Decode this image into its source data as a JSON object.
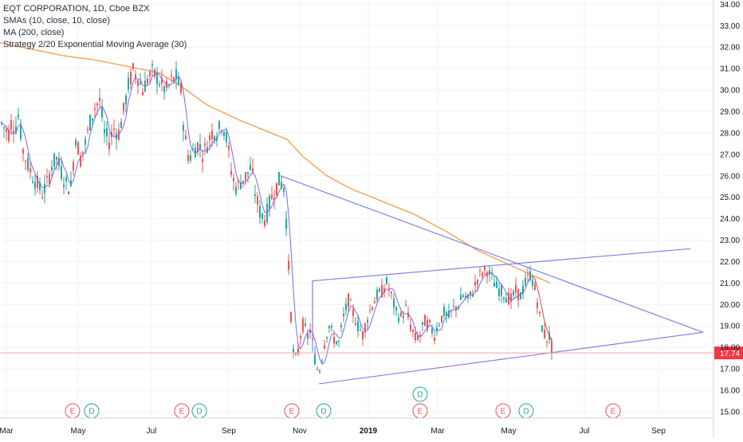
{
  "legend": {
    "symbol": "EQT CORPORATION, 1D, Cboe BZX",
    "sma": "SMAs (10, close, 10, close)",
    "ma": "MA (200, close)",
    "strategy": "Strategy 2/20 Exponential Moving Average (30)"
  },
  "colors": {
    "up": "#26a69a",
    "down": "#ef5350",
    "sma": "#7b68ee",
    "sma2": "#e0405a",
    "ma200": "#f5a05a",
    "trend": "#8080e8",
    "last_price": "#f23645",
    "event_e": "#ef5350",
    "event_d": "#26a69a",
    "grid": "#f0f3fa",
    "axis_text": "#131722"
  },
  "chart_data": {
    "type": "candlestick",
    "title": "EQT CORPORATION, 1D, Cboe BZX",
    "x_tick_labels": [
      "Mar",
      "May",
      "Jul",
      "Sep",
      "Nov",
      "2019",
      "Mar",
      "May",
      "Jul",
      "Sep"
    ],
    "y_tick_labels": [
      "15.00",
      "16.00",
      "17.00",
      "18.00",
      "19.00",
      "20.00",
      "21.00",
      "22.00",
      "23.00",
      "24.00",
      "25.00",
      "26.00",
      "27.00",
      "28.00",
      "29.00",
      "30.00",
      "31.00",
      "32.00",
      "33.00",
      "34.00"
    ],
    "y_ticks": [
      15,
      16,
      17,
      18,
      19,
      20,
      21,
      22,
      23,
      24,
      25,
      26,
      27,
      28,
      29,
      30,
      31,
      32,
      33,
      34
    ],
    "ylim": [
      14.7,
      34.2
    ],
    "last_price": 17.74,
    "last_price_label": "17.74",
    "price_path": [
      {
        "x": 0,
        "y": 28.5
      },
      {
        "x": 5,
        "y": 28.2
      },
      {
        "x": 10,
        "y": 28.0
      },
      {
        "x": 14,
        "y": 28.6
      },
      {
        "x": 18,
        "y": 28.2
      },
      {
        "x": 22,
        "y": 28.8
      },
      {
        "x": 28,
        "y": 27.2
      },
      {
        "x": 34,
        "y": 26.5
      },
      {
        "x": 40,
        "y": 26.0
      },
      {
        "x": 46,
        "y": 25.6
      },
      {
        "x": 52,
        "y": 25.2
      },
      {
        "x": 58,
        "y": 25.6
      },
      {
        "x": 64,
        "y": 26.5
      },
      {
        "x": 70,
        "y": 26.8
      },
      {
        "x": 76,
        "y": 26.2
      },
      {
        "x": 82,
        "y": 25.6
      },
      {
        "x": 88,
        "y": 25.5
      },
      {
        "x": 94,
        "y": 27.8
      },
      {
        "x": 100,
        "y": 26.8
      },
      {
        "x": 106,
        "y": 27.5
      },
      {
        "x": 112,
        "y": 28.5
      },
      {
        "x": 118,
        "y": 29.2
      },
      {
        "x": 124,
        "y": 29.5
      },
      {
        "x": 130,
        "y": 28.0
      },
      {
        "x": 136,
        "y": 27.6
      },
      {
        "x": 142,
        "y": 28.2
      },
      {
        "x": 148,
        "y": 28.0
      },
      {
        "x": 154,
        "y": 29.0
      },
      {
        "x": 160,
        "y": 30.2
      },
      {
        "x": 166,
        "y": 30.9
      },
      {
        "x": 172,
        "y": 30.6
      },
      {
        "x": 178,
        "y": 30.0
      },
      {
        "x": 184,
        "y": 30.5
      },
      {
        "x": 190,
        "y": 30.8
      },
      {
        "x": 196,
        "y": 30.6
      },
      {
        "x": 202,
        "y": 30.2
      },
      {
        "x": 208,
        "y": 30.0
      },
      {
        "x": 214,
        "y": 30.4
      },
      {
        "x": 220,
        "y": 30.6
      },
      {
        "x": 226,
        "y": 30.0
      },
      {
        "x": 230,
        "y": 28.0
      },
      {
        "x": 236,
        "y": 26.8
      },
      {
        "x": 242,
        "y": 27.2
      },
      {
        "x": 248,
        "y": 27.5
      },
      {
        "x": 254,
        "y": 27.0
      },
      {
        "x": 260,
        "y": 27.6
      },
      {
        "x": 266,
        "y": 28.1
      },
      {
        "x": 272,
        "y": 28.0
      },
      {
        "x": 278,
        "y": 28.5
      },
      {
        "x": 284,
        "y": 27.6
      },
      {
        "x": 290,
        "y": 26.0
      },
      {
        "x": 296,
        "y": 25.4
      },
      {
        "x": 302,
        "y": 25.8
      },
      {
        "x": 308,
        "y": 26.0
      },
      {
        "x": 314,
        "y": 26.4
      },
      {
        "x": 320,
        "y": 25.0
      },
      {
        "x": 326,
        "y": 24.2
      },
      {
        "x": 332,
        "y": 24.0
      },
      {
        "x": 338,
        "y": 24.8
      },
      {
        "x": 344,
        "y": 25.4
      },
      {
        "x": 350,
        "y": 25.8
      },
      {
        "x": 356,
        "y": 25.4
      },
      {
        "x": 360,
        "y": 22.5
      },
      {
        "x": 364,
        "y": 19.5
      },
      {
        "x": 368,
        "y": 17.2
      },
      {
        "x": 372,
        "y": 17.6
      },
      {
        "x": 376,
        "y": 18.6
      },
      {
        "x": 380,
        "y": 19.2
      },
      {
        "x": 384,
        "y": 18.4
      },
      {
        "x": 388,
        "y": 18.8
      },
      {
        "x": 392,
        "y": 18.0
      },
      {
        "x": 396,
        "y": 17.0
      },
      {
        "x": 400,
        "y": 17.0
      },
      {
        "x": 404,
        "y": 17.8
      },
      {
        "x": 408,
        "y": 18.6
      },
      {
        "x": 412,
        "y": 19.0
      },
      {
        "x": 418,
        "y": 18.4
      },
      {
        "x": 424,
        "y": 18.2
      },
      {
        "x": 430,
        "y": 19.4
      },
      {
        "x": 436,
        "y": 20.2
      },
      {
        "x": 442,
        "y": 19.6
      },
      {
        "x": 448,
        "y": 19.0
      },
      {
        "x": 454,
        "y": 18.6
      },
      {
        "x": 460,
        "y": 19.4
      },
      {
        "x": 466,
        "y": 20.0
      },
      {
        "x": 472,
        "y": 20.4
      },
      {
        "x": 478,
        "y": 20.6
      },
      {
        "x": 484,
        "y": 21.0
      },
      {
        "x": 490,
        "y": 20.4
      },
      {
        "x": 496,
        "y": 19.6
      },
      {
        "x": 502,
        "y": 19.4
      },
      {
        "x": 508,
        "y": 19.8
      },
      {
        "x": 514,
        "y": 19.0
      },
      {
        "x": 520,
        "y": 18.4
      },
      {
        "x": 526,
        "y": 18.6
      },
      {
        "x": 532,
        "y": 19.2
      },
      {
        "x": 538,
        "y": 19.0
      },
      {
        "x": 544,
        "y": 18.6
      },
      {
        "x": 550,
        "y": 19.2
      },
      {
        "x": 556,
        "y": 19.6
      },
      {
        "x": 562,
        "y": 19.4
      },
      {
        "x": 568,
        "y": 19.8
      },
      {
        "x": 574,
        "y": 20.0
      },
      {
        "x": 580,
        "y": 20.4
      },
      {
        "x": 586,
        "y": 20.2
      },
      {
        "x": 592,
        "y": 20.6
      },
      {
        "x": 598,
        "y": 21.2
      },
      {
        "x": 604,
        "y": 21.5
      },
      {
        "x": 610,
        "y": 21.6
      },
      {
        "x": 616,
        "y": 21.2
      },
      {
        "x": 622,
        "y": 20.8
      },
      {
        "x": 628,
        "y": 20.6
      },
      {
        "x": 634,
        "y": 20.4
      },
      {
        "x": 640,
        "y": 20.2
      },
      {
        "x": 646,
        "y": 20.6
      },
      {
        "x": 652,
        "y": 20.4
      },
      {
        "x": 658,
        "y": 21.0
      },
      {
        "x": 664,
        "y": 21.4
      },
      {
        "x": 668,
        "y": 21.0
      },
      {
        "x": 672,
        "y": 20.4
      },
      {
        "x": 676,
        "y": 19.4
      },
      {
        "x": 680,
        "y": 18.8
      },
      {
        "x": 684,
        "y": 18.4
      },
      {
        "x": 688,
        "y": 18.5
      },
      {
        "x": 692,
        "y": 17.8
      }
    ],
    "ma200_line": [
      {
        "x": 0,
        "y": 32.2
      },
      {
        "x": 40,
        "y": 31.9
      },
      {
        "x": 80,
        "y": 31.6
      },
      {
        "x": 120,
        "y": 31.4
      },
      {
        "x": 160,
        "y": 31.1
      },
      {
        "x": 200,
        "y": 30.8
      },
      {
        "x": 230,
        "y": 30.1
      },
      {
        "x": 260,
        "y": 29.3
      },
      {
        "x": 300,
        "y": 28.6
      },
      {
        "x": 340,
        "y": 28.0
      },
      {
        "x": 360,
        "y": 27.7
      },
      {
        "x": 380,
        "y": 26.9
      },
      {
        "x": 410,
        "y": 26.0
      },
      {
        "x": 440,
        "y": 25.4
      },
      {
        "x": 480,
        "y": 24.8
      },
      {
        "x": 520,
        "y": 24.2
      },
      {
        "x": 560,
        "y": 23.4
      },
      {
        "x": 600,
        "y": 22.5
      },
      {
        "x": 630,
        "y": 22.0
      },
      {
        "x": 660,
        "y": 21.5
      },
      {
        "x": 690,
        "y": 21.0
      }
    ],
    "trendlines": [
      {
        "from": {
          "x": 352,
          "y": 26.0
        },
        "to": {
          "x": 882,
          "y": 18.7
        }
      },
      {
        "from": {
          "x": 400,
          "y": 16.3
        },
        "to": {
          "x": 882,
          "y": 18.7
        }
      },
      {
        "from": {
          "x": 392,
          "y": 21.1
        },
        "to": {
          "x": 866,
          "y": 22.6
        }
      },
      {
        "from": {
          "x": 392,
          "y": 21.1
        },
        "to": {
          "x": 392,
          "y": 17.8
        }
      }
    ],
    "events": [
      {
        "label": "E",
        "x": 91,
        "row": 0
      },
      {
        "label": "D",
        "x": 115,
        "row": 0
      },
      {
        "label": "E",
        "x": 228,
        "row": 0
      },
      {
        "label": "D",
        "x": 250,
        "row": 0
      },
      {
        "label": "E",
        "x": 366,
        "row": 0
      },
      {
        "label": "D",
        "x": 406,
        "row": 0
      },
      {
        "label": "D",
        "x": 527,
        "row": 1
      },
      {
        "label": "E",
        "x": 527,
        "row": 0
      },
      {
        "label": "E",
        "x": 631,
        "row": 0
      },
      {
        "label": "D",
        "x": 660,
        "row": 0
      },
      {
        "label": "E",
        "x": 769,
        "row": 0
      }
    ]
  }
}
